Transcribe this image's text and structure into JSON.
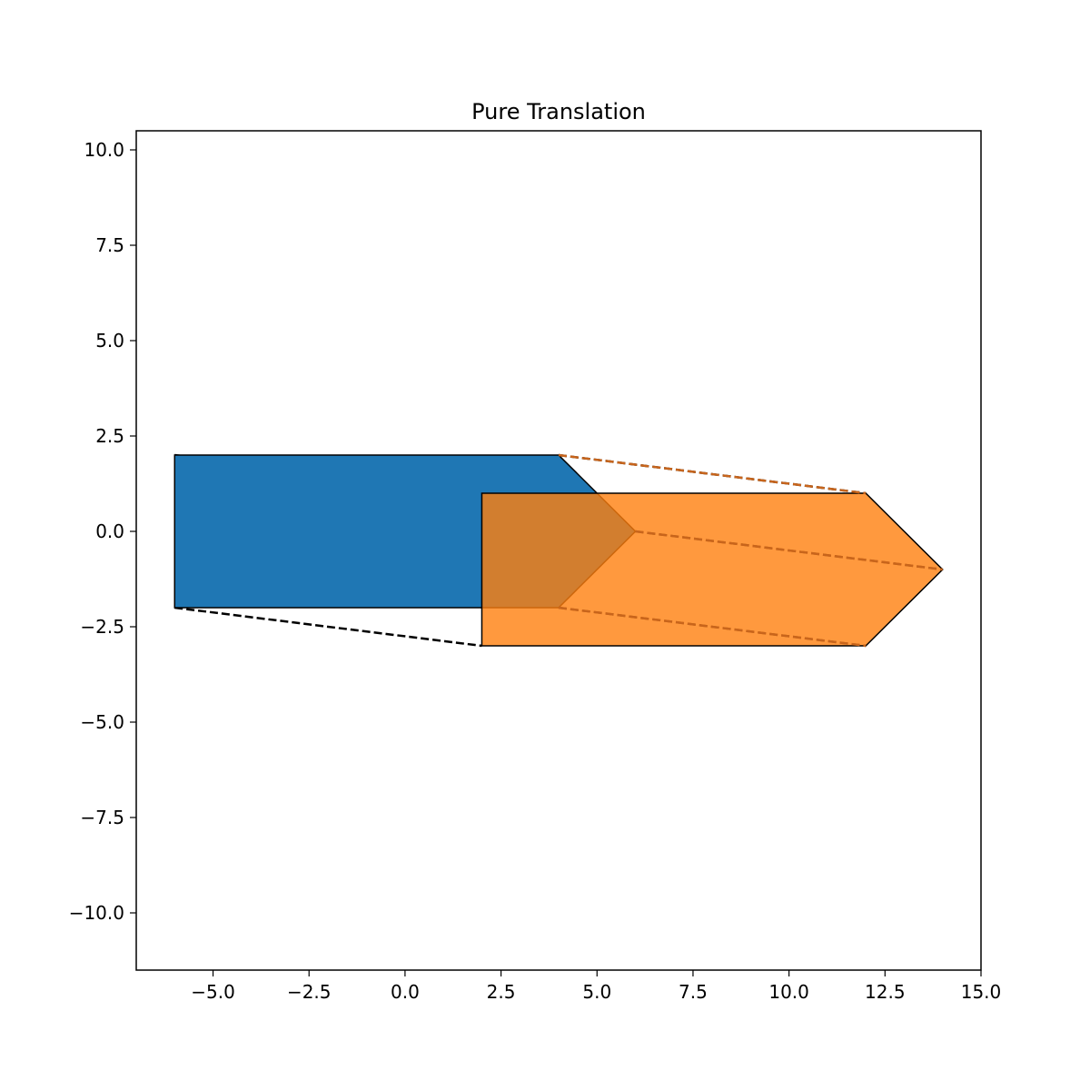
{
  "chart_data": {
    "type": "polygon",
    "title": "Pure Translation",
    "xlabel": "",
    "ylabel": "",
    "xlim": [
      -7,
      15
    ],
    "ylim": [
      -11.5,
      10.5
    ],
    "x_ticks": [
      -5.0,
      -2.5,
      0.0,
      2.5,
      5.0,
      7.5,
      10.0,
      12.5,
      15.0
    ],
    "x_tick_labels": [
      "−5.0",
      "−2.5",
      "0.0",
      "2.5",
      "5.0",
      "7.5",
      "10.0",
      "12.5",
      "15.0"
    ],
    "y_ticks": [
      10.0,
      7.5,
      5.0,
      2.5,
      0.0,
      -2.5,
      -5.0,
      -7.5,
      -10.0
    ],
    "y_tick_labels": [
      "10.0",
      "7.5",
      "5.0",
      "2.5",
      "0.0",
      "−2.5",
      "−5.0",
      "−7.5",
      "−10.0"
    ],
    "grid": false,
    "legend": "none",
    "shapes": [
      {
        "points": [
          [
            -6,
            -2
          ],
          [
            4,
            -2
          ],
          [
            6,
            0
          ],
          [
            4,
            2
          ],
          [
            -6,
            2
          ]
        ],
        "fill": "#1f77b4",
        "opacity": 1.0
      },
      {
        "points": [
          [
            2,
            -3
          ],
          [
            12,
            -3
          ],
          [
            14,
            -1
          ],
          [
            12,
            1
          ],
          [
            2,
            1
          ]
        ],
        "fill": "#ff7f0e",
        "opacity": 0.8
      }
    ],
    "connectors": [
      [
        [
          -6,
          -2
        ],
        [
          2,
          -3
        ]
      ],
      [
        [
          4,
          -2
        ],
        [
          12,
          -3
        ]
      ],
      [
        [
          6,
          0
        ],
        [
          14,
          -1
        ]
      ],
      [
        [
          4,
          2
        ],
        [
          12,
          1
        ]
      ],
      [
        [
          -6,
          2
        ],
        [
          2,
          1
        ]
      ]
    ]
  }
}
